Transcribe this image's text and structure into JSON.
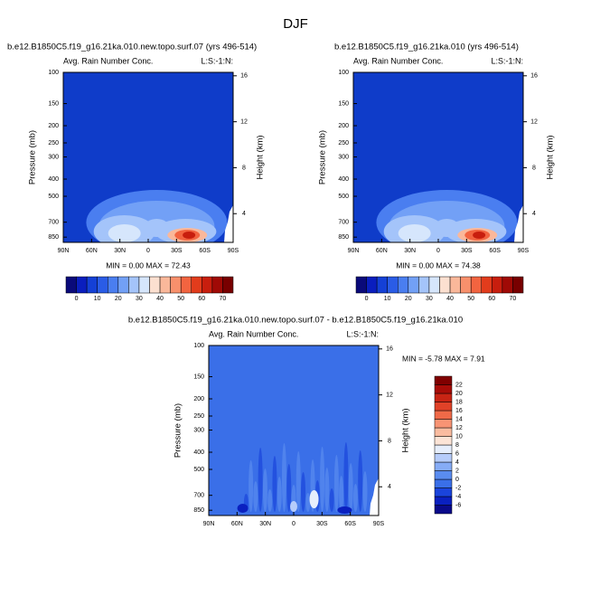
{
  "title": "DJF",
  "chart_data": [
    {
      "type": "contour",
      "title": "b.e12.B1850C5.f19_g16.21ka.010.new.topo.surf.07 (yrs 496-514)",
      "plot_label": "Avg. Rain Number Conc.",
      "corner_label": "L:S:-1:N:",
      "ylabel": "Pressure (mb)",
      "y2label": "Height (km)",
      "stats": "MIN =  0.00  MAX = 72.43",
      "xlim": [
        90,
        -90
      ],
      "xticks": [
        {
          "value": 90,
          "label": "90N"
        },
        {
          "value": 60,
          "label": "60N"
        },
        {
          "value": 30,
          "label": "30N"
        },
        0,
        {
          "value": -30,
          "label": "30S"
        },
        {
          "value": -60,
          "label": "60S"
        },
        {
          "value": -90,
          "label": "90S"
        }
      ],
      "ylim": [
        910,
        100
      ],
      "log_y": true,
      "yticks": [
        100,
        150,
        200,
        250,
        300,
        400,
        500,
        700,
        850
      ],
      "y2lim": [
        1.5,
        16.3
      ],
      "y2ticks": [
        4,
        8,
        12,
        16
      ],
      "field_color": "#0f3cc9",
      "colorbar": {
        "orientation": "horizontal",
        "levels": [
          0,
          5,
          10,
          15,
          20,
          25,
          30,
          35,
          40,
          45,
          50,
          55,
          60,
          65,
          70
        ],
        "ticks": [
          0,
          10,
          20,
          30,
          40,
          50,
          60,
          70
        ],
        "colors": [
          "#0a0a7a",
          "#0a1ebe",
          "#1440d6",
          "#2a5ce6",
          "#4a7ef0",
          "#72a0f6",
          "#a4c4fa",
          "#d6e6fc",
          "#fce0d0",
          "#fab89a",
          "#f8906c",
          "#f26440",
          "#e23c1c",
          "#c81e0e",
          "#a00a06",
          "#780000"
        ]
      }
    },
    {
      "type": "contour",
      "title": "b.e12.B1850C5.f19_g16.21ka.010 (yrs 496-514)",
      "plot_label": "Avg. Rain Number Conc.",
      "corner_label": "L:S:-1:N:",
      "ylabel": "Pressure (mb)",
      "y2label": "Height (km)",
      "stats": "MIN =  0.00  MAX = 74.38",
      "xlim": [
        90,
        -90
      ],
      "xticks": [
        {
          "value": 90,
          "label": "90N"
        },
        {
          "value": 60,
          "label": "60N"
        },
        {
          "value": 30,
          "label": "30N"
        },
        0,
        {
          "value": -30,
          "label": "30S"
        },
        {
          "value": -60,
          "label": "60S"
        },
        {
          "value": -90,
          "label": "90S"
        }
      ],
      "ylim": [
        910,
        100
      ],
      "log_y": true,
      "yticks": [
        100,
        150,
        200,
        250,
        300,
        400,
        500,
        700,
        850
      ],
      "y2lim": [
        1.5,
        16.3
      ],
      "y2ticks": [
        4,
        8,
        12,
        16
      ],
      "field_color": "#0f3cc9",
      "colorbar": {
        "orientation": "horizontal",
        "levels": [
          0,
          5,
          10,
          15,
          20,
          25,
          30,
          35,
          40,
          45,
          50,
          55,
          60,
          65,
          70
        ],
        "ticks": [
          0,
          10,
          20,
          30,
          40,
          50,
          60,
          70
        ],
        "colors": [
          "#0a0a7a",
          "#0a1ebe",
          "#1440d6",
          "#2a5ce6",
          "#4a7ef0",
          "#72a0f6",
          "#a4c4fa",
          "#d6e6fc",
          "#fce0d0",
          "#fab89a",
          "#f8906c",
          "#f26440",
          "#e23c1c",
          "#c81e0e",
          "#a00a06",
          "#780000"
        ]
      }
    },
    {
      "type": "contour",
      "title": "b.e12.B1850C5.f19_g16.21ka.010.new.topo.surf.07 - b.e12.B1850C5.f19_g16.21ka.010",
      "plot_label": "Avg. Rain Number Conc.",
      "corner_label": "L:S:-1:N:",
      "ylabel": "Pressure (mb)",
      "y2label": "Height (km)",
      "stats": "MIN = -5.78  MAX =  7.91",
      "xlim": [
        90,
        -90
      ],
      "xticks": [
        {
          "value": 90,
          "label": "90N"
        },
        {
          "value": 60,
          "label": "60N"
        },
        {
          "value": 30,
          "label": "30N"
        },
        0,
        {
          "value": -30,
          "label": "30S"
        },
        {
          "value": -60,
          "label": "60S"
        },
        {
          "value": -90,
          "label": "90S"
        }
      ],
      "ylim": [
        910,
        100
      ],
      "log_y": true,
      "yticks": [
        100,
        150,
        200,
        250,
        300,
        400,
        500,
        700,
        850
      ],
      "y2lim": [
        1.5,
        16.3
      ],
      "y2ticks": [
        4,
        8,
        12,
        16
      ],
      "field_color": "#3a6fe8",
      "colorbar": {
        "orientation": "vertical",
        "levels": [
          -6,
          -4,
          -2,
          0,
          2,
          4,
          6,
          8,
          10,
          12,
          14,
          16,
          18,
          20,
          22
        ],
        "ticks": [
          -6,
          -4,
          -2,
          0,
          2,
          4,
          6,
          8,
          10,
          12,
          14,
          16,
          18,
          20,
          22
        ],
        "colors": [
          "#0a0a8a",
          "#0a20c0",
          "#1a44dc",
          "#3a6fe8",
          "#5a8cf0",
          "#86acf6",
          "#b6ccfa",
          "#e6eefc",
          "#fce4d6",
          "#fabca0",
          "#f89474",
          "#f06a48",
          "#e04228",
          "#c82414",
          "#a80c08",
          "#800000"
        ]
      }
    }
  ]
}
